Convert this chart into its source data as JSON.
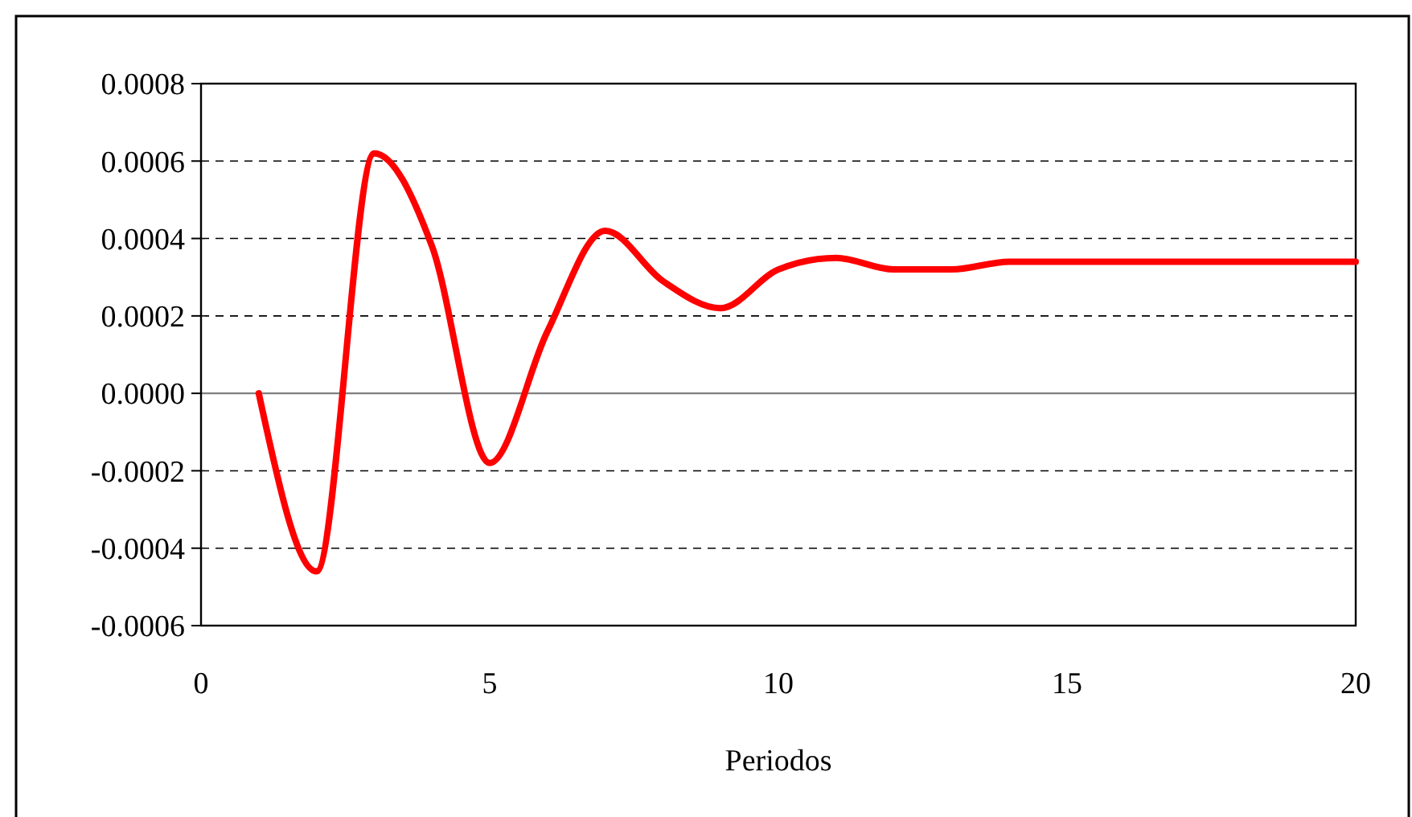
{
  "chart_data": {
    "type": "line",
    "xlabel": "Periodos",
    "x": [
      1,
      2,
      3,
      4,
      5,
      6,
      7,
      8,
      9,
      10,
      11,
      12,
      13,
      14,
      15,
      16,
      17,
      18,
      19,
      20
    ],
    "series": [
      {
        "color": "#ff0000",
        "values": [
          0,
          -0.00046,
          0.00062,
          0.00038,
          -0.00018,
          0.00016,
          0.00042,
          0.00029,
          0.00022,
          0.00032,
          0.00035,
          0.00032,
          0.00032,
          0.00034,
          0.00034,
          0.00034,
          0.00034,
          0.00034,
          0.00034,
          0.00034
        ]
      }
    ],
    "xlim": [
      0,
      20
    ],
    "xticks": [
      0,
      5,
      10,
      15,
      20
    ],
    "ylim": [
      -0.0006,
      0.0008
    ],
    "yticks": [
      {
        "value": -0.0006,
        "label": "-0.0006"
      },
      {
        "value": -0.0004,
        "label": "-0.0004"
      },
      {
        "value": -0.0002,
        "label": "-0.0002"
      },
      {
        "value": 0,
        "label": "0.0000"
      },
      {
        "value": 0.0002,
        "label": "0.0002"
      },
      {
        "value": 0.0004,
        "label": "0.0004"
      },
      {
        "value": 0.0006,
        "label": "0.0006"
      },
      {
        "value": 0.0008,
        "label": "0.0008"
      }
    ],
    "grid": "y",
    "marker": "none",
    "line_style": "solid"
  }
}
